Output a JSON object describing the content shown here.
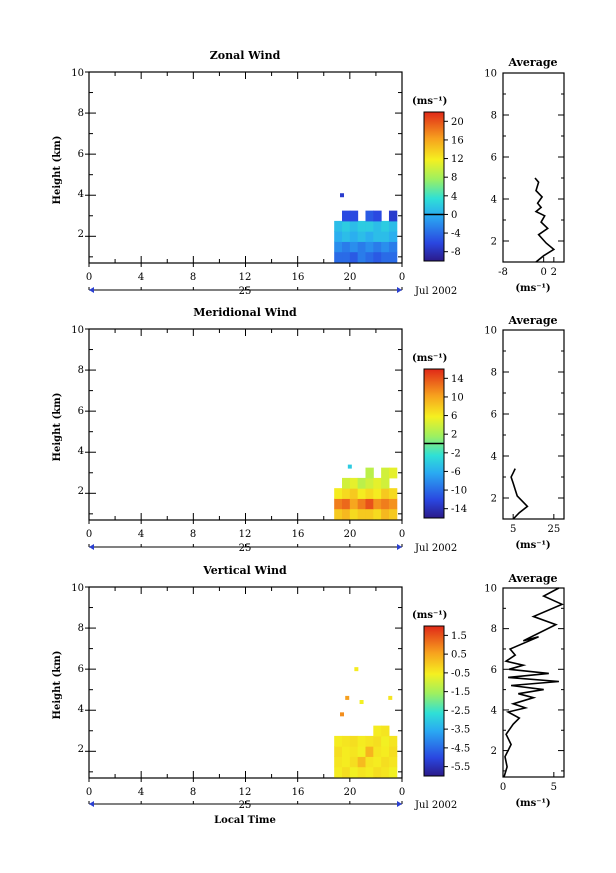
{
  "chart_data": [
    {
      "id": "zonal",
      "type": "heatmap",
      "title": "Zonal Wind",
      "ylabel": "Height (km)",
      "xlim": [
        0,
        24
      ],
      "ylim": [
        0.7,
        10
      ],
      "xticks": [
        "0",
        "4",
        "8",
        "12",
        "16",
        "20",
        "0"
      ],
      "yticks": [
        "2",
        "4",
        "6",
        "8",
        "10"
      ],
      "date_label": "25",
      "month_label": "Jul 2002",
      "colorbar": {
        "unit": "(ms⁻¹)",
        "labels": [
          "20",
          "16",
          "12",
          "8",
          "4",
          "0",
          "-4",
          "-8"
        ],
        "range": [
          -10,
          22
        ],
        "zero_line": 0
      },
      "field": {
        "x": [
          19.1,
          19.7,
          20.3,
          20.9,
          21.5,
          22.1,
          22.7,
          23.3
        ],
        "y": [
          1.0,
          1.5,
          2.0,
          2.5,
          3.0
        ],
        "values": [
          [
            -4,
            -4,
            -5,
            -3,
            -4,
            -5,
            -4,
            -4
          ],
          [
            -2,
            -3,
            -2,
            -3,
            -2,
            -3,
            -2,
            -3
          ],
          [
            0,
            1,
            0,
            1,
            0,
            1,
            1,
            0
          ],
          [
            1,
            2,
            1,
            2,
            2,
            1,
            2,
            1
          ],
          [
            null,
            -6,
            -6,
            null,
            -5,
            -6,
            null,
            -7
          ]
        ],
        "isolated": [
          {
            "x": 19.4,
            "y": 4.0,
            "v": -7
          }
        ]
      },
      "profile": {
        "title": "Average",
        "xlabel": "(ms⁻¹)",
        "xlim": [
          -8,
          4
        ],
        "xticks": [
          "-8",
          "0",
          "2"
        ],
        "yticks": [
          "2",
          "4",
          "6",
          "8",
          "10"
        ],
        "ylim": [
          1,
          10
        ],
        "points": [
          [
            -1.5,
            1.0
          ],
          [
            0,
            1.3
          ],
          [
            2.0,
            1.6
          ],
          [
            0.5,
            1.9
          ],
          [
            -1.0,
            2.3
          ],
          [
            0.8,
            2.6
          ],
          [
            -0.5,
            2.9
          ],
          [
            0.2,
            3.2
          ],
          [
            -1.5,
            3.4
          ],
          [
            -0.5,
            3.6
          ],
          [
            -1.2,
            3.8
          ],
          [
            -0.3,
            4.1
          ],
          [
            -1.5,
            4.4
          ],
          [
            -1.0,
            4.8
          ],
          [
            -1.7,
            5.0
          ]
        ]
      }
    },
    {
      "id": "meridional",
      "type": "heatmap",
      "title": "Meridional Wind",
      "ylabel": "Height (km)",
      "xlim": [
        0,
        24
      ],
      "ylim": [
        0.7,
        10
      ],
      "xticks": [
        "0",
        "4",
        "8",
        "12",
        "16",
        "20",
        "0"
      ],
      "yticks": [
        "2",
        "4",
        "6",
        "8",
        "10"
      ],
      "date_label": "25",
      "month_label": "Jul 2002",
      "colorbar": {
        "unit": "(ms⁻¹)",
        "labels": [
          "14",
          "10",
          "6",
          "2",
          "-2",
          "-6",
          "-10",
          "-14"
        ],
        "range": [
          -16,
          16
        ],
        "zero_line": 0
      },
      "field": {
        "x": [
          19.1,
          19.7,
          20.3,
          20.9,
          21.5,
          22.1,
          22.7,
          23.3
        ],
        "y": [
          1.0,
          1.5,
          2.0,
          2.5,
          3.0
        ],
        "values": [
          [
            8,
            9,
            7,
            8,
            8,
            7,
            9,
            8
          ],
          [
            12,
            13,
            10,
            12,
            14,
            11,
            12,
            11
          ],
          [
            6,
            7,
            8,
            6,
            7,
            6,
            8,
            7
          ],
          [
            null,
            4,
            5,
            3,
            4,
            5,
            4,
            null
          ],
          [
            null,
            null,
            null,
            null,
            3,
            null,
            4,
            5
          ]
        ],
        "isolated": [
          {
            "x": 20.0,
            "y": 3.3,
            "v": -4
          }
        ]
      },
      "profile": {
        "title": "Average",
        "xlabel": "(ms⁻¹)",
        "xlim": [
          0,
          30
        ],
        "xticks": [
          "5",
          "25"
        ],
        "yticks": [
          "2",
          "4",
          "6",
          "8",
          "10"
        ],
        "ylim": [
          1,
          10
        ],
        "points": [
          [
            5,
            1.0
          ],
          [
            8,
            1.3
          ],
          [
            12,
            1.6
          ],
          [
            10,
            1.8
          ],
          [
            7,
            2.1
          ],
          [
            6,
            2.4
          ],
          [
            5,
            2.7
          ],
          [
            4,
            3.0
          ],
          [
            5,
            3.2
          ],
          [
            6,
            3.4
          ]
        ]
      }
    },
    {
      "id": "vertical",
      "type": "heatmap",
      "title": "Vertical Wind",
      "ylabel": "Height (km)",
      "xlabel": "Local Time",
      "xlim": [
        0,
        24
      ],
      "ylim": [
        0.7,
        10
      ],
      "xticks": [
        "0",
        "4",
        "8",
        "12",
        "16",
        "20",
        "0"
      ],
      "yticks": [
        "2",
        "4",
        "6",
        "8",
        "10"
      ],
      "date_label": "25",
      "month_label": "Jul 2002",
      "colorbar": {
        "unit": "(ms⁻¹)",
        "labels": [
          "1.5",
          "0.5",
          "-0.5",
          "-1.5",
          "-2.5",
          "-3.5",
          "-4.5",
          "-5.5"
        ],
        "range": [
          -6,
          2
        ],
        "zero_line": null
      },
      "field": {
        "x": [
          19.1,
          19.7,
          20.3,
          20.9,
          21.5,
          22.1,
          22.7,
          23.3
        ],
        "y": [
          1.0,
          1.5,
          2.0,
          2.5,
          3.0
        ],
        "values": [
          [
            -0.5,
            -0.3,
            -0.6,
            -0.4,
            -0.5,
            -0.3,
            -0.4,
            -0.6
          ],
          [
            -0.4,
            -0.5,
            -0.3,
            0.2,
            -0.4,
            -0.5,
            -0.3,
            -0.4
          ],
          [
            -0.3,
            -0.5,
            -0.4,
            -0.6,
            0.3,
            -0.4,
            -0.5,
            -0.3
          ],
          [
            -0.5,
            -0.4,
            -0.3,
            -0.5,
            -0.4,
            -0.3,
            -0.6,
            -0.4
          ],
          [
            null,
            null,
            null,
            null,
            null,
            -0.5,
            -0.4,
            null
          ]
        ],
        "isolated": [
          {
            "x": 20.5,
            "y": 6.0,
            "v": -0.5
          },
          {
            "x": 19.8,
            "y": 4.6,
            "v": 0.6
          },
          {
            "x": 20.9,
            "y": 4.4,
            "v": -0.6
          },
          {
            "x": 23.1,
            "y": 4.6,
            "v": -0.4
          },
          {
            "x": 19.4,
            "y": 3.8,
            "v": 0.8
          }
        ]
      },
      "profile": {
        "title": "Average",
        "xlabel": "(ms⁻¹)",
        "xlim": [
          0,
          6
        ],
        "xticks": [
          "0",
          "5"
        ],
        "yticks": [
          "2",
          "4",
          "6",
          "8",
          "10"
        ],
        "ylim": [
          0.7,
          10
        ],
        "points": [
          [
            0.1,
            0.7
          ],
          [
            0.4,
            1.2
          ],
          [
            0.2,
            1.7
          ],
          [
            0.8,
            2.3
          ],
          [
            0.3,
            2.8
          ],
          [
            1.0,
            3.3
          ],
          [
            1.6,
            3.6
          ],
          [
            0.5,
            3.9
          ],
          [
            2.2,
            4.1
          ],
          [
            1.0,
            4.3
          ],
          [
            3.0,
            4.6
          ],
          [
            1.5,
            4.8
          ],
          [
            4.0,
            5.0
          ],
          [
            0.8,
            5.2
          ],
          [
            5.5,
            5.4
          ],
          [
            0.5,
            5.6
          ],
          [
            4.5,
            5.8
          ],
          [
            0.6,
            6.0
          ],
          [
            2.0,
            6.2
          ],
          [
            0.3,
            6.4
          ],
          [
            1.2,
            6.7
          ],
          [
            0.7,
            7.0
          ],
          [
            3.5,
            7.6
          ],
          [
            2.0,
            7.4
          ],
          [
            5.2,
            8.2
          ],
          [
            3.0,
            8.6
          ],
          [
            5.8,
            9.2
          ],
          [
            4.0,
            9.6
          ],
          [
            5.5,
            10.0
          ]
        ]
      }
    }
  ]
}
